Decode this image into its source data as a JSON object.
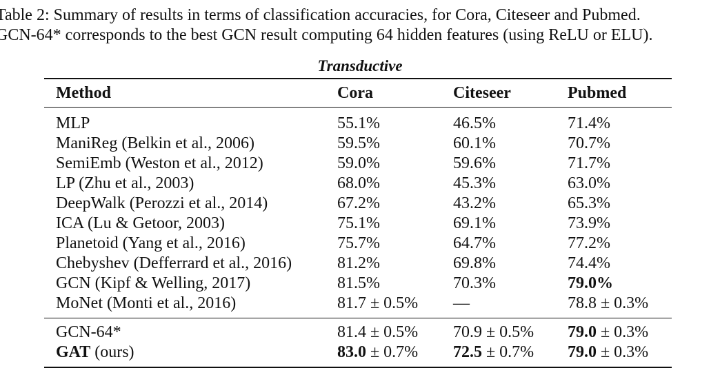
{
  "caption": {
    "line1": "Table 2: Summary of results in terms of classification accuracies, for Cora, Citeseer and Pubmed.",
    "line2": "GCN-64* corresponds to the best GCN result computing 64 hidden features (using ReLU or ELU)."
  },
  "table": {
    "subtitle": "Transductive",
    "headers": [
      "Method",
      "Cora",
      "Citeseer",
      "Pubmed"
    ],
    "rows": [
      {
        "method": "MLP",
        "cora": "55.1%",
        "citeseer": "46.5%",
        "pubmed": "71.4%"
      },
      {
        "method": "ManiReg (Belkin et al., 2006)",
        "cora": "59.5%",
        "citeseer": "60.1%",
        "pubmed": "70.7%"
      },
      {
        "method": "SemiEmb (Weston et al., 2012)",
        "cora": "59.0%",
        "citeseer": "59.6%",
        "pubmed": "71.7%"
      },
      {
        "method": "LP (Zhu et al., 2003)",
        "cora": "68.0%",
        "citeseer": "45.3%",
        "pubmed": "63.0%"
      },
      {
        "method": "DeepWalk (Perozzi et al., 2014)",
        "cora": "67.2%",
        "citeseer": "43.2%",
        "pubmed": "65.3%"
      },
      {
        "method": "ICA (Lu & Getoor, 2003)",
        "cora": "75.1%",
        "citeseer": "69.1%",
        "pubmed": "73.9%"
      },
      {
        "method": "Planetoid (Yang et al., 2016)",
        "cora": "75.7%",
        "citeseer": "64.7%",
        "pubmed": "77.2%"
      },
      {
        "method": "Chebyshev (Defferrard et al., 2016)",
        "cora": "81.2%",
        "citeseer": "69.8%",
        "pubmed": "74.4%"
      },
      {
        "method": "GCN (Kipf & Welling, 2017)",
        "cora": "81.5%",
        "citeseer": "70.3%",
        "pubmed": "79.0%"
      },
      {
        "method": "MoNet (Monti et al., 2016)",
        "cora": "81.7 ± 0.5%",
        "citeseer": "—",
        "pubmed": "78.8 ± 0.3%"
      }
    ],
    "gcn64": {
      "method": "GCN-64*",
      "cora": "81.4 ± 0.5%",
      "citeseer": "70.9 ± 0.5%",
      "pubmed_bold": "79.0",
      "pubmed_rest": " ± 0.3%"
    },
    "gat": {
      "method_bold": "GAT",
      "method_rest": " (ours)",
      "cora_bold": "83.0",
      "cora_rest": " ± 0.7%",
      "citeseer_bold": "72.5",
      "citeseer_rest": " ± 0.7%",
      "pubmed_bold": "79.0",
      "pubmed_rest": " ± 0.3%"
    }
  }
}
